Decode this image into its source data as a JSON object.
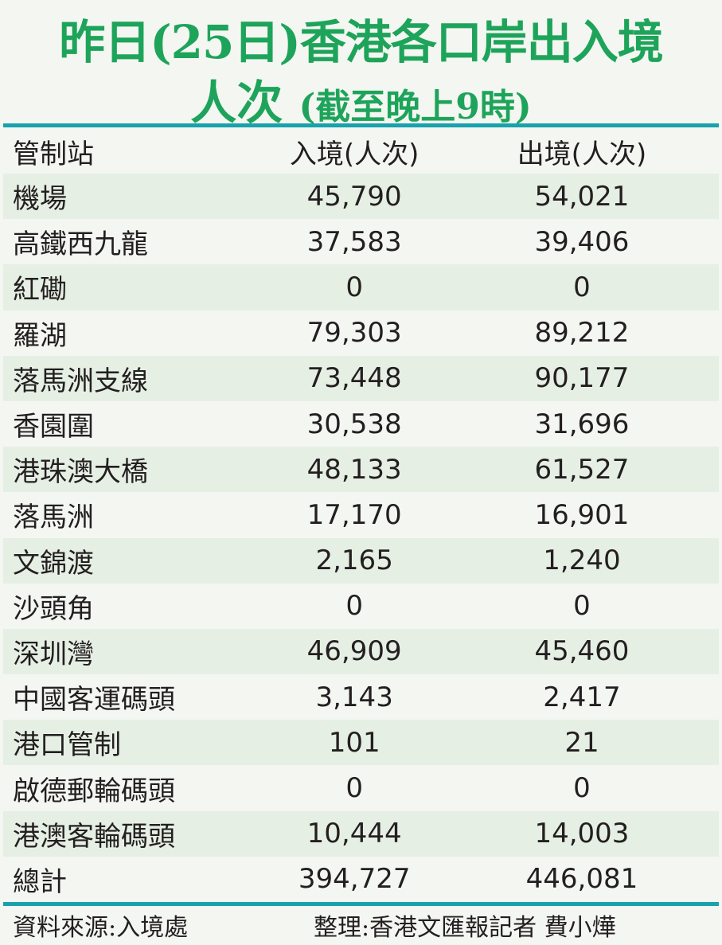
{
  "title_line1": "昨日(25日)香港各口岸出入境",
  "title_line2_main": "人次",
  "title_line2_sub": "(截至晚上9時)",
  "colors": {
    "title": "#1ea45a",
    "rule": "#17a2ac",
    "row_shade": "#e6efe4"
  },
  "chart_data": {
    "type": "table",
    "columns": [
      "管制站",
      "入境(人次)",
      "出境(人次)"
    ],
    "rows": [
      [
        "機場",
        "45,790",
        "54,021"
      ],
      [
        "高鐵西九龍",
        "37,583",
        "39,406"
      ],
      [
        "紅磡",
        "0",
        "0"
      ],
      [
        "羅湖",
        "79,303",
        "89,212"
      ],
      [
        "落馬洲支線",
        "73,448",
        "90,177"
      ],
      [
        "香園圍",
        "30,538",
        "31,696"
      ],
      [
        "港珠澳大橋",
        "48,133",
        "61,527"
      ],
      [
        "落馬洲",
        "17,170",
        "16,901"
      ],
      [
        "文錦渡",
        "2,165",
        "1,240"
      ],
      [
        "沙頭角",
        "0",
        "0"
      ],
      [
        "深圳灣",
        "46,909",
        "45,460"
      ],
      [
        "中國客運碼頭",
        "3,143",
        "2,417"
      ],
      [
        "港口管制",
        "101",
        "21"
      ],
      [
        "啟德郵輪碼頭",
        "0",
        "0"
      ],
      [
        "港澳客輪碼頭",
        "10,444",
        "14,003"
      ],
      [
        "總計",
        "394,727",
        "446,081"
      ]
    ]
  },
  "footer": {
    "source": "資料來源:入境處",
    "credit": "整理:香港文匯報記者 費小燁"
  }
}
